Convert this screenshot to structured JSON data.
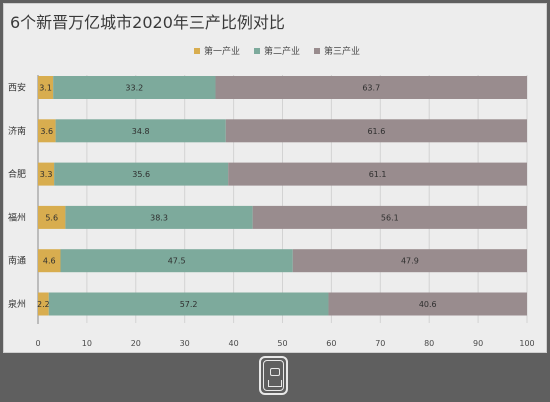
{
  "colors": {
    "primary": "#d8ad4f",
    "secondary": "#7daa9c",
    "tertiary": "#998c8e",
    "background": "#ededed",
    "outer": "#5f5f5f",
    "grid": "#d3d3d3",
    "axis": "#8a8a8a",
    "text": "#3a3a3a"
  },
  "chart_data": {
    "type": "bar",
    "orientation": "horizontal",
    "stacked": true,
    "title": "6个新晋万亿城市2020年三产比例对比",
    "legend_position": "top-center",
    "categories": [
      "西安",
      "济南",
      "合肥",
      "福州",
      "南通",
      "泉州"
    ],
    "series": [
      {
        "name": "第一产业",
        "color": "#d8ad4f",
        "values": [
          3.1,
          3.6,
          3.3,
          5.6,
          4.6,
          2.2
        ]
      },
      {
        "name": "第二产业",
        "color": "#7daa9c",
        "values": [
          33.2,
          34.8,
          35.6,
          38.3,
          47.5,
          57.2
        ]
      },
      {
        "name": "第三产业",
        "color": "#998c8e",
        "values": [
          63.7,
          61.6,
          61.1,
          56.1,
          47.9,
          40.6
        ]
      }
    ],
    "x_ticks": [
      0,
      10,
      20,
      30,
      40,
      50,
      60,
      70,
      80,
      90,
      100
    ],
    "x_range": [
      0,
      100
    ],
    "grid": true
  }
}
